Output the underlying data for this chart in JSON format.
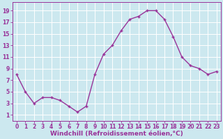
{
  "x": [
    0,
    1,
    2,
    3,
    4,
    5,
    6,
    7,
    8,
    9,
    10,
    11,
    12,
    13,
    14,
    15,
    16,
    17,
    18,
    19,
    20,
    21,
    22,
    23
  ],
  "y": [
    8,
    5,
    3,
    4,
    4,
    3.5,
    2.5,
    1.5,
    2.5,
    8,
    11.5,
    13,
    15.5,
    17.5,
    18,
    19,
    19,
    17.5,
    14.5,
    11,
    9.5,
    9,
    8,
    8.5
  ],
  "line_color": "#993399",
  "marker": "+",
  "bg_color": "#cce8ef",
  "grid_color": "#ffffff",
  "xlabel": "Windchill (Refroidissement éolien,°C)",
  "yticks": [
    1,
    3,
    5,
    7,
    9,
    11,
    13,
    15,
    17,
    19
  ],
  "xtick_labels": [
    "0",
    "1",
    "2",
    "3",
    "4",
    "5",
    "6",
    "7",
    "8",
    "9",
    "10",
    "11",
    "12",
    "13",
    "14",
    "15",
    "16",
    "17",
    "18",
    "19",
    "20",
    "21",
    "22",
    "23"
  ],
  "ylim": [
    0,
    20.5
  ],
  "xlim": [
    -0.5,
    23.5
  ],
  "line_color_spine": "#993399",
  "xlabel_fontsize": 6.5,
  "tick_fontsize": 5.5,
  "linewidth": 1.0,
  "markersize": 3.5,
  "markeredgewidth": 1.0
}
